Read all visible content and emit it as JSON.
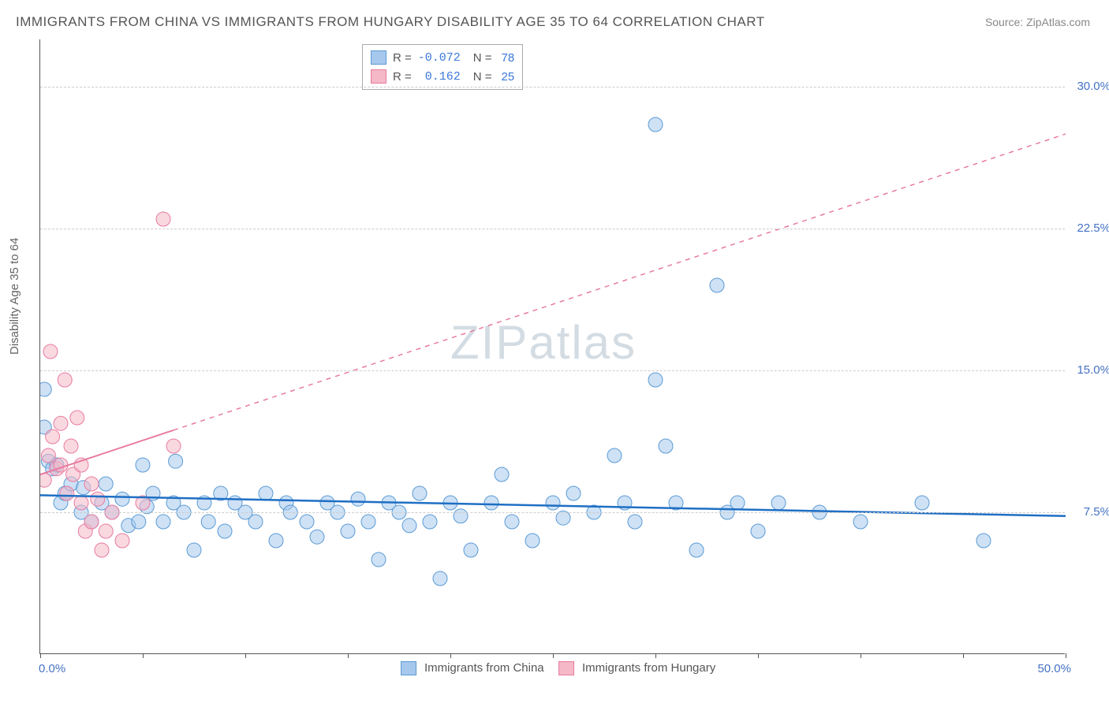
{
  "title": "IMMIGRANTS FROM CHINA VS IMMIGRANTS FROM HUNGARY DISABILITY AGE 35 TO 64 CORRELATION CHART",
  "source": "Source: ZipAtlas.com",
  "ylabel": "Disability Age 35 to 64",
  "watermark": "ZIPatlas",
  "chart": {
    "type": "scatter",
    "xlim": [
      0,
      50
    ],
    "ylim": [
      0,
      32.5
    ],
    "x_min_label": "0.0%",
    "x_max_label": "50.0%",
    "y_ticks": [
      7.5,
      15.0,
      22.5,
      30.0
    ],
    "y_tick_labels": [
      "7.5%",
      "15.0%",
      "22.5%",
      "30.0%"
    ],
    "x_tick_positions": [
      0,
      5,
      10,
      15,
      20,
      25,
      30,
      35,
      40,
      45,
      50
    ],
    "background_color": "#ffffff",
    "grid_color": "#cccccc",
    "axis_color": "#555555"
  },
  "series": [
    {
      "name": "Immigrants from China",
      "color_fill": "#a6c8ec",
      "color_stroke": "#5b9bd5",
      "marker_radius": 9,
      "fill_opacity": 0.55,
      "R": "-0.072",
      "N": "78",
      "trend": {
        "x1": 0,
        "y1": 8.4,
        "x2": 50,
        "y2": 7.3,
        "color": "#1f6fc4",
        "width": 2.5,
        "dash": "none"
      },
      "points": [
        [
          0.2,
          14.0
        ],
        [
          0.2,
          12.0
        ],
        [
          0.4,
          10.2
        ],
        [
          0.6,
          9.8
        ],
        [
          0.8,
          10.0
        ],
        [
          1.0,
          8.0
        ],
        [
          1.2,
          8.5
        ],
        [
          1.5,
          9.0
        ],
        [
          2.0,
          7.5
        ],
        [
          2.1,
          8.8
        ],
        [
          2.5,
          7.0
        ],
        [
          3.0,
          8.0
        ],
        [
          3.2,
          9.0
        ],
        [
          3.5,
          7.5
        ],
        [
          4.0,
          8.2
        ],
        [
          4.3,
          6.8
        ],
        [
          4.8,
          7.0
        ],
        [
          5.0,
          10.0
        ],
        [
          5.2,
          7.8
        ],
        [
          5.5,
          8.5
        ],
        [
          6.0,
          7.0
        ],
        [
          6.5,
          8.0
        ],
        [
          6.6,
          10.2
        ],
        [
          7.0,
          7.5
        ],
        [
          7.5,
          5.5
        ],
        [
          8.0,
          8.0
        ],
        [
          8.2,
          7.0
        ],
        [
          8.8,
          8.5
        ],
        [
          9.0,
          6.5
        ],
        [
          9.5,
          8.0
        ],
        [
          10.0,
          7.5
        ],
        [
          10.5,
          7.0
        ],
        [
          11.0,
          8.5
        ],
        [
          11.5,
          6.0
        ],
        [
          12.0,
          8.0
        ],
        [
          12.2,
          7.5
        ],
        [
          13.0,
          7.0
        ],
        [
          13.5,
          6.2
        ],
        [
          14.0,
          8.0
        ],
        [
          14.5,
          7.5
        ],
        [
          15.0,
          6.5
        ],
        [
          15.5,
          8.2
        ],
        [
          16.0,
          7.0
        ],
        [
          16.5,
          5.0
        ],
        [
          17.0,
          8.0
        ],
        [
          17.5,
          7.5
        ],
        [
          18.0,
          6.8
        ],
        [
          18.5,
          8.5
        ],
        [
          19.0,
          7.0
        ],
        [
          19.5,
          4.0
        ],
        [
          20.0,
          8.0
        ],
        [
          20.5,
          7.3
        ],
        [
          21.0,
          5.5
        ],
        [
          22.0,
          8.0
        ],
        [
          22.5,
          9.5
        ],
        [
          23.0,
          7.0
        ],
        [
          24.0,
          6.0
        ],
        [
          25.0,
          8.0
        ],
        [
          25.5,
          7.2
        ],
        [
          26.0,
          8.5
        ],
        [
          27.0,
          7.5
        ],
        [
          28.0,
          10.5
        ],
        [
          28.5,
          8.0
        ],
        [
          29.0,
          7.0
        ],
        [
          30.0,
          14.5
        ],
        [
          30.0,
          28.0
        ],
        [
          30.5,
          11.0
        ],
        [
          31.0,
          8.0
        ],
        [
          32.0,
          5.5
        ],
        [
          33.0,
          19.5
        ],
        [
          33.5,
          7.5
        ],
        [
          34.0,
          8.0
        ],
        [
          35.0,
          6.5
        ],
        [
          36.0,
          8.0
        ],
        [
          38.0,
          7.5
        ],
        [
          40.0,
          7.0
        ],
        [
          43.0,
          8.0
        ],
        [
          46.0,
          6.0
        ]
      ]
    },
    {
      "name": "Immigrants from Hungary",
      "color_fill": "#f4b8c6",
      "color_stroke": "#e97ba1",
      "marker_radius": 9,
      "fill_opacity": 0.55,
      "R": "0.162",
      "N": "25",
      "trend": {
        "x1": 0,
        "y1": 9.5,
        "x2": 50,
        "y2": 27.5,
        "solid_until_x": 6.5,
        "color": "#e97ba1",
        "width": 1.5,
        "dash": "6,6"
      },
      "points": [
        [
          0.2,
          9.2
        ],
        [
          0.4,
          10.5
        ],
        [
          0.5,
          16.0
        ],
        [
          0.6,
          11.5
        ],
        [
          0.8,
          9.8
        ],
        [
          1.0,
          12.2
        ],
        [
          1.0,
          10.0
        ],
        [
          1.2,
          14.5
        ],
        [
          1.3,
          8.5
        ],
        [
          1.5,
          11.0
        ],
        [
          1.6,
          9.5
        ],
        [
          1.8,
          12.5
        ],
        [
          2.0,
          10.0
        ],
        [
          2.0,
          8.0
        ],
        [
          2.2,
          6.5
        ],
        [
          2.5,
          9.0
        ],
        [
          2.5,
          7.0
        ],
        [
          2.8,
          8.2
        ],
        [
          3.0,
          5.5
        ],
        [
          3.2,
          6.5
        ],
        [
          3.5,
          7.5
        ],
        [
          4.0,
          6.0
        ],
        [
          5.0,
          8.0
        ],
        [
          6.0,
          23.0
        ],
        [
          6.5,
          11.0
        ]
      ]
    }
  ],
  "legend": {
    "series1_label": "Immigrants from China",
    "series2_label": "Immigrants from Hungary"
  }
}
